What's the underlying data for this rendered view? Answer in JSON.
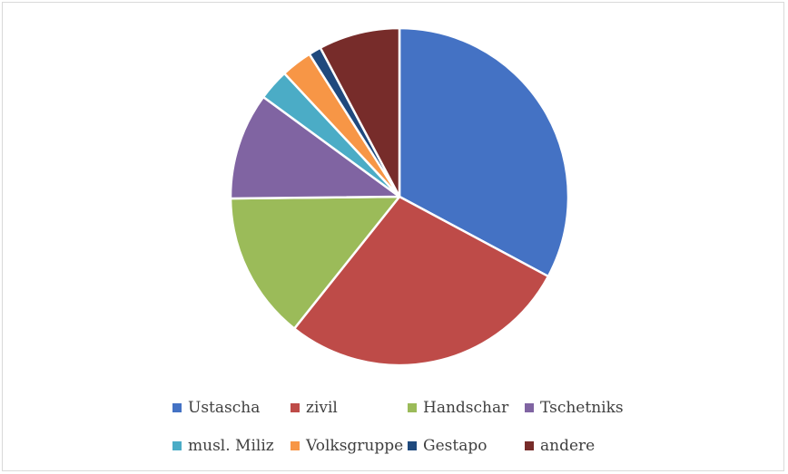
{
  "chart_data": {
    "type": "pie",
    "categories": [
      "Ustascha",
      "zivil",
      "Handschar",
      "Tschetniks",
      "musl. Miliz",
      "Volksgruppe",
      "Gestapo",
      "andere"
    ],
    "values": [
      33.0,
      28.0,
      14.2,
      10.3,
      3.0,
      3.0,
      1.2,
      7.8
    ],
    "colors": [
      "#4472C4",
      "#BE4B48",
      "#9BBB59",
      "#8064A2",
      "#4BACC6",
      "#F79646",
      "#1F497D",
      "#772C2A"
    ],
    "title": "",
    "legend_position": "bottom",
    "start_angle": "12 o'clock",
    "direction": "clockwise"
  }
}
